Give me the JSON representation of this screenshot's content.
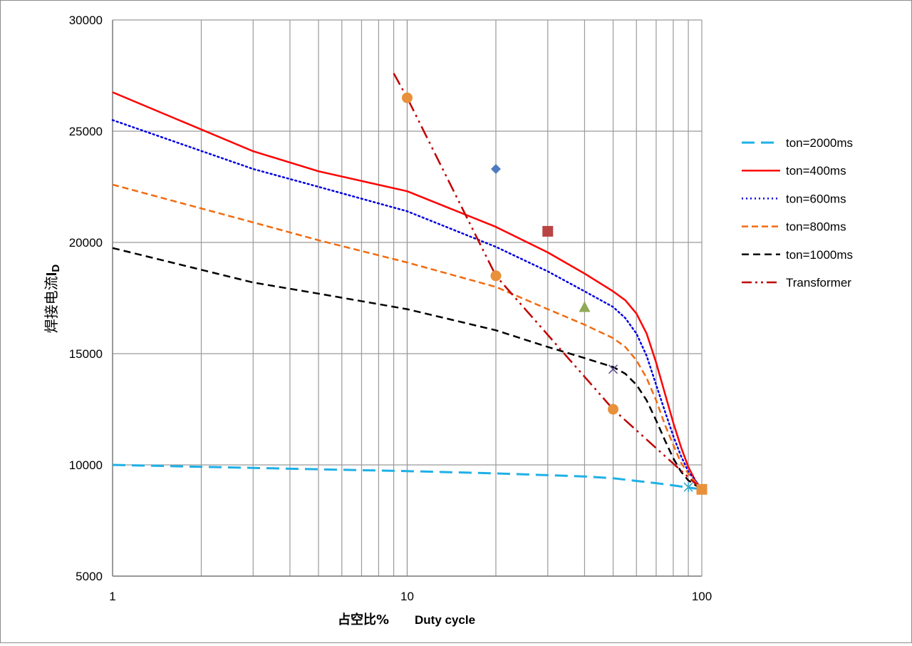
{
  "chart_data": {
    "type": "line",
    "title": "",
    "xlabel_cn": "占空比%",
    "xlabel_en": "Duty cycle",
    "ylabel_main": "焊接电流",
    "ylabel_i": "I",
    "ylabel_sub": "D",
    "x_scale": "log",
    "xlim": [
      1,
      100
    ],
    "ylim": [
      5000,
      30000
    ],
    "x_ticks": [
      1,
      10,
      100
    ],
    "x_tick_labels": [
      "1",
      "10",
      "100"
    ],
    "y_ticks": [
      5000,
      10000,
      15000,
      20000,
      25000,
      30000
    ],
    "y_tick_labels": [
      "5000",
      "10000",
      "15000",
      "20000",
      "25000",
      "30000"
    ],
    "grid": true,
    "legend_position": "right",
    "series": [
      {
        "name": "ton=2000ms",
        "color": "#1fb0e6",
        "dash": "18,9",
        "width": 3,
        "x": [
          1,
          5,
          10,
          20,
          40,
          50,
          60,
          70,
          80,
          90,
          100
        ],
        "y": [
          10000,
          9800,
          9720,
          9620,
          9480,
          9400,
          9280,
          9180,
          9080,
          8980,
          8900
        ]
      },
      {
        "name": "ton=400ms",
        "color": "#ff0000",
        "dash": "",
        "width": 2.5,
        "x": [
          1,
          3,
          5,
          10,
          20,
          30,
          40,
          50,
          55,
          60,
          65,
          70,
          75,
          80,
          85,
          90,
          95,
          100
        ],
        "y": [
          26750,
          24100,
          23200,
          22300,
          20700,
          19550,
          18600,
          17800,
          17400,
          16800,
          15900,
          14600,
          13200,
          11900,
          10800,
          9900,
          9300,
          8900
        ]
      },
      {
        "name": "ton=600ms",
        "color": "#0000e0",
        "dash": "2,4",
        "width": 2.5,
        "x": [
          1,
          3,
          5,
          10,
          20,
          30,
          40,
          50,
          55,
          60,
          65,
          70,
          75,
          80,
          85,
          90,
          100
        ],
        "y": [
          25500,
          23300,
          22500,
          21400,
          19800,
          18700,
          17800,
          17100,
          16600,
          15900,
          14900,
          13600,
          12400,
          11300,
          10400,
          9700,
          8900
        ]
      },
      {
        "name": "ton=800ms",
        "color": "#f26b0f",
        "dash": "9,5",
        "width": 2.5,
        "x": [
          1,
          3,
          5,
          10,
          20,
          30,
          40,
          50,
          55,
          60,
          65,
          70,
          75,
          80,
          85,
          90,
          100
        ],
        "y": [
          22600,
          20900,
          20100,
          19100,
          18000,
          17000,
          16300,
          15700,
          15300,
          14700,
          13900,
          12900,
          11800,
          10900,
          10100,
          9600,
          8900
        ]
      },
      {
        "name": "ton=1000ms",
        "color": "#000000",
        "dash": "10,6",
        "width": 2.5,
        "x": [
          1,
          3,
          5,
          10,
          20,
          30,
          40,
          50,
          55,
          60,
          65,
          70,
          75,
          80,
          85,
          90,
          100
        ],
        "y": [
          19750,
          18200,
          17700,
          17000,
          16050,
          15300,
          14800,
          14400,
          14100,
          13600,
          12900,
          12000,
          11100,
          10300,
          9700,
          9300,
          8900
        ]
      },
      {
        "name": "Transformer",
        "color": "#c00000",
        "dash": "18,6,3,6,3,6",
        "width": 2.5,
        "x": [
          9,
          10,
          20,
          50,
          100
        ],
        "y": [
          27600,
          26500,
          18500,
          12500,
          8900
        ]
      }
    ],
    "markers": [
      {
        "shape": "circle",
        "color": "#e8913a",
        "x": 10,
        "y": 26500
      },
      {
        "shape": "circle",
        "color": "#e8913a",
        "x": 20,
        "y": 18500
      },
      {
        "shape": "circle",
        "color": "#e8913a",
        "x": 50,
        "y": 12500
      },
      {
        "shape": "diamond",
        "color": "#4e7bc0",
        "x": 20,
        "y": 23300
      },
      {
        "shape": "square",
        "color": "#b94444",
        "x": 30,
        "y": 20500
      },
      {
        "shape": "triangle",
        "color": "#8faa56",
        "x": 40,
        "y": 17100
      },
      {
        "shape": "x",
        "color": "#5b4a8a",
        "x": 50,
        "y": 14300
      },
      {
        "shape": "asterisk",
        "color": "#35a8c8",
        "x": 90,
        "y": 9000
      },
      {
        "shape": "square",
        "color": "#e8913a",
        "x": 100,
        "y": 8900
      }
    ]
  }
}
